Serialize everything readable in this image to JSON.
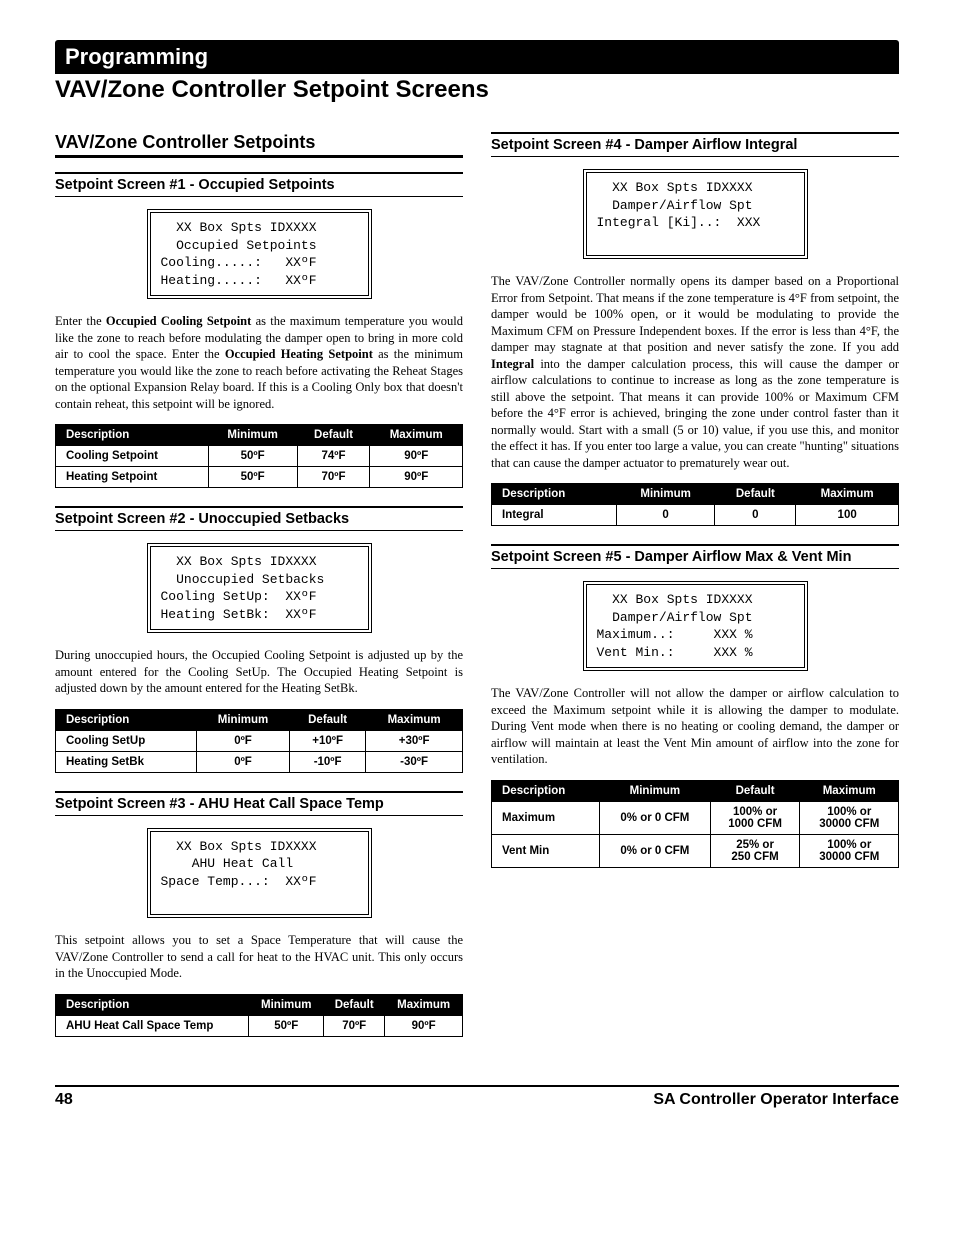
{
  "header": {
    "bar": "Programming",
    "title": "VAV/Zone Controller Setpoint Screens"
  },
  "left": {
    "section_title": "VAV/Zone Controller Setpoints",
    "s1": {
      "heading": "Setpoint Screen #1 - Occupied Setpoints",
      "lcd": "  XX Box Spts IDXXXX\n  Occupied Setpoints\nCooling.....:   XXºF\nHeating.....:   XXºF",
      "para_html": "Enter the <b>Occupied Cooling Setpoint</b> as the maximum temperature you would like the zone to reach before modulating the damper open to bring in more cold air to cool the space. Enter the <b>Occupied Heating Setpoint</b> as the minimum temperature you would like the zone to reach before activating the Reheat Stages on the optional Expansion Relay board. If this is a Cooling Only box that doesn't contain reheat, this setpoint will be ignored.",
      "table": {
        "headers": [
          "Description",
          "Minimum",
          "Default",
          "Maximum"
        ],
        "rows": [
          [
            "Cooling Setpoint",
            "50ºF",
            "74ºF",
            "90ºF"
          ],
          [
            "Heating Setpoint",
            "50ºF",
            "70ºF",
            "90ºF"
          ]
        ]
      }
    },
    "s2": {
      "heading": "Setpoint Screen #2 - Unoccupied Setbacks",
      "lcd": "  XX Box Spts IDXXXX\n  Unoccupied Setbacks\nCooling SetUp:  XXºF\nHeating SetBk:  XXºF",
      "para": "During unoccupied hours, the Occupied Cooling Setpoint is adjusted up by the amount entered for the Cooling SetUp. The Occupied Heating Setpoint is adjusted down by the amount entered for the Heating SetBk.",
      "table": {
        "headers": [
          "Description",
          "Minimum",
          "Default",
          "Maximum"
        ],
        "rows": [
          [
            "Cooling SetUp",
            "0ºF",
            "+10ºF",
            "+30ºF"
          ],
          [
            "Heating SetBk",
            "0ºF",
            "-10ºF",
            "-30ºF"
          ]
        ]
      }
    },
    "s3": {
      "heading": "Setpoint Screen #3 - AHU Heat Call Space Temp",
      "lcd": "  XX Box Spts IDXXXX\n    AHU Heat Call\nSpace Temp...:  XXºF\n ",
      "para": "This setpoint allows you to set a Space Temperature that will cause the VAV/Zone Controller to send a call for heat to the HVAC unit. This only occurs in the Unoccupied Mode.",
      "table": {
        "headers": [
          "Description",
          "Minimum",
          "Default",
          "Maximum"
        ],
        "rows": [
          [
            "AHU Heat Call Space Temp",
            "50ºF",
            "70ºF",
            "90ºF"
          ]
        ]
      }
    }
  },
  "right": {
    "s4": {
      "heading": "Setpoint Screen #4 - Damper Airflow Integral",
      "lcd": "  XX Box Spts IDXXXX\n  Damper/Airflow Spt\nIntegral [Ki]..:  XXX\n ",
      "para_html": "The VAV/Zone Controller normally opens its damper based on a Proportional Error from Setpoint. That means if the zone temperature is 4°F from setpoint, the damper would be 100% open, or it would be modulating to provide the Maximum CFM on Pressure Independent boxes. If the error is less than 4°F, the damper may stagnate at that position and never satisfy the zone. If you add <b>Integral</b> into the damper calculation process, this will cause the damper or airflow calculations to continue to increase as long as the zone temperature is still above the setpoint. That means it can provide 100% or Maximum CFM before the 4°F error is achieved, bringing the zone under control faster than it normally would. Start with a small (5 or 10) value, if you use this, and monitor the effect it has. If you enter too large a value, you can create \"hunting\" situations that can cause the damper actuator to prematurely wear out.",
      "table": {
        "headers": [
          "Description",
          "Minimum",
          "Default",
          "Maximum"
        ],
        "rows": [
          [
            "Integral",
            "0",
            "0",
            "100"
          ]
        ]
      }
    },
    "s5": {
      "heading": "Setpoint Screen #5 - Damper Airflow Max & Vent Min",
      "lcd": "  XX Box Spts IDXXXX\n  Damper/Airflow Spt\nMaximum..:     XXX %\nVent Min.:     XXX %",
      "para": "The VAV/Zone Controller will not allow the damper or airflow calculation to exceed the Maximum setpoint while it is allowing the damper to modulate. During Vent mode when there is no heating or cooling demand, the damper or airflow will maintain at least the Vent Min amount of airflow into the zone for ventilation.",
      "table": {
        "headers": [
          "Description",
          "Minimum",
          "Default",
          "Maximum"
        ],
        "rows": [
          [
            "Maximum",
            "0% or 0 CFM",
            "100% or\n1000 CFM",
            "100% or\n30000 CFM"
          ],
          [
            "Vent Min",
            "0% or 0 CFM",
            "25% or\n250 CFM",
            "100% or\n30000 CFM"
          ]
        ]
      }
    }
  },
  "footer": {
    "page": "48",
    "title": "SA Controller Operator Interface"
  }
}
